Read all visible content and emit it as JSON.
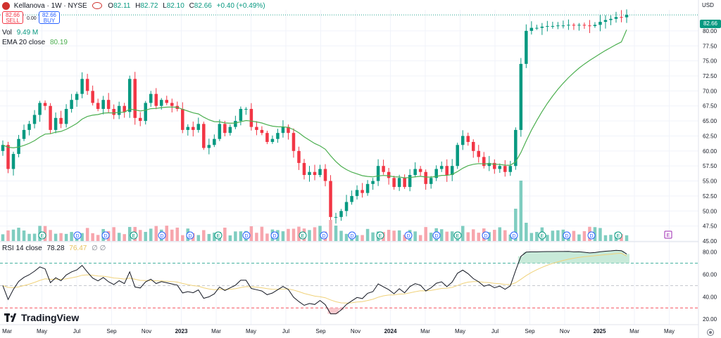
{
  "symbol": {
    "name": "Kellanova · 1W · NYSE",
    "ohlc": {
      "o_label": "O",
      "o": "82.11",
      "h_label": "H",
      "h": "82.72",
      "l_label": "L",
      "l": "82.10",
      "c_label": "C",
      "c": "82.66"
    },
    "change": "+0.40 (+0.49%)",
    "sell_price": "82.66",
    "sell_label": "SELL",
    "buy_price": "82.66",
    "buy_label": "BUY",
    "spread": "0.00"
  },
  "currency": "USD",
  "price_tag": "82.66",
  "indicators": {
    "vol_label": "Vol",
    "vol_value": "9.49 M",
    "ema_label": "EMA 20 close",
    "ema_value": "80.19",
    "rsi_label": "RSI 14 close",
    "rsi_value": "78.28",
    "rsi_ma_value": "76.47",
    "rsi_extra": "∅ ∅"
  },
  "brand": "TradingView",
  "colors": {
    "up": "#089981",
    "down": "#f23645",
    "ema": "#4caf50",
    "rsi": "#131722",
    "rsi_ma": "#f0d27a",
    "grid": "#f0f3fa"
  },
  "chart_data": [
    {
      "type": "candlestick",
      "title": "Kellanova · 1W · NYSE",
      "x_ticks": [
        "Mar",
        "May",
        "Jul",
        "Sep",
        "Nov",
        "2023",
        "Mar",
        "May",
        "Jul",
        "Sep",
        "Nov",
        "2024",
        "Mar",
        "May",
        "Jul",
        "Sep",
        "Nov",
        "2025",
        "Mar",
        "May"
      ],
      "y_ticks": [
        82.66,
        80.0,
        77.5,
        75.0,
        72.5,
        70.0,
        67.5,
        65.0,
        62.5,
        60.0,
        57.5,
        55.0,
        52.5,
        50.0,
        47.5,
        45.0
      ],
      "ylim": [
        45.0,
        83.5
      ],
      "closes": [
        61.0,
        57.0,
        59.5,
        62.0,
        63.5,
        64.5,
        66.0,
        68.0,
        67.5,
        63.5,
        65.5,
        64.5,
        67.0,
        68.5,
        69.5,
        72.0,
        70.0,
        68.0,
        67.0,
        68.5,
        67.0,
        66.0,
        67.5,
        66.5,
        72.0,
        65.5,
        65.0,
        68.0,
        69.5,
        67.5,
        68.5,
        68.0,
        67.5,
        67.0,
        63.5,
        64.0,
        63.5,
        64.5,
        60.5,
        61.0,
        62.0,
        64.5,
        63.0,
        64.0,
        65.0,
        67.0,
        67.0,
        64.0,
        63.5,
        63.0,
        61.5,
        62.0,
        63.0,
        64.0,
        63.0,
        60.0,
        58.0,
        56.0,
        56.5,
        56.0,
        57.0,
        55.0,
        49.0,
        49.0,
        50.0,
        51.5,
        52.5,
        53.5,
        53.0,
        54.5,
        55.0,
        57.5,
        56.5,
        55.5,
        54.0,
        55.5,
        54.0,
        56.0,
        57.0,
        56.5,
        54.5,
        55.5,
        57.0,
        57.5,
        56.0,
        57.5,
        61.0,
        62.5,
        61.5,
        60.0,
        59.0,
        57.5,
        58.0,
        57.0,
        57.5,
        56.5,
        57.5,
        63.5,
        74.5,
        80.0,
        80.5,
        80.5,
        80.7,
        80.8,
        80.8,
        80.9,
        80.9,
        81.0,
        80.9,
        81.0,
        80.9,
        80.8,
        81.0,
        81.5,
        81.8,
        82.0,
        82.3,
        82.26,
        82.66
      ],
      "ema20_last": 80.19,
      "volume_last": "9.49 M",
      "volume_spikes": [
        {
          "x": "2024 Jul-Aug",
          "relative": "highest"
        },
        {
          "x": "2023 Oct",
          "relative": "high"
        }
      ],
      "earnings_markers": "E",
      "dividend_markers": "D"
    },
    {
      "type": "line",
      "title": "RSI 14 close",
      "y_ticks": [
        80.0,
        60.0,
        40.0,
        20.0
      ],
      "ylim": [
        15,
        88
      ],
      "bands": [
        70,
        50,
        30
      ],
      "series": [
        {
          "name": "RSI 14 close",
          "last": 78.28
        },
        {
          "name": "RSI MA",
          "last": 76.47
        }
      ]
    }
  ]
}
